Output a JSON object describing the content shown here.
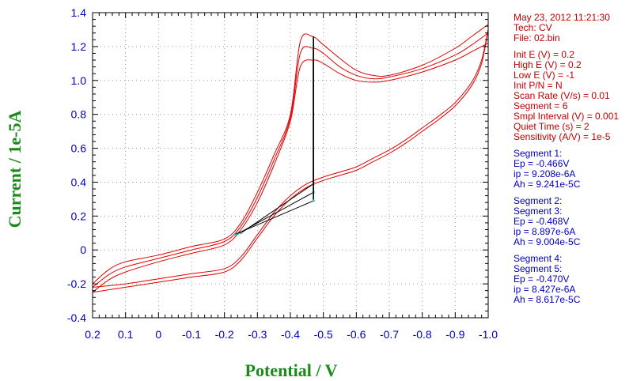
{
  "chart_data": {
    "type": "line",
    "xlabel": "Potential / V",
    "ylabel": "Current / 1e-5A",
    "xlim": [
      0.2,
      -1.0
    ],
    "ylim": [
      -0.4,
      1.4
    ],
    "x_ticks": [
      "0.2",
      "0.1",
      "0",
      "-0.1",
      "-0.2",
      "-0.3",
      "-0.4",
      "-0.5",
      "-0.6",
      "-0.7",
      "-0.8",
      "-0.9",
      "-1.0"
    ],
    "y_ticks": [
      "-0.4",
      "-0.2",
      "0",
      "0.2",
      "0.4",
      "0.6",
      "0.8",
      "1.0",
      "1.2",
      "1.4"
    ],
    "grid": true,
    "colors": {
      "curve": "#e00000",
      "baseline": "#000000",
      "axis_text": "#0000c0",
      "label": "#1a8a1a"
    },
    "series": [
      {
        "x": [
          0.2,
          0.15,
          0.1,
          0.0,
          -0.1,
          -0.2,
          -0.25,
          -0.3,
          -0.35,
          -0.4,
          -0.43,
          -0.47,
          -0.5,
          -0.55,
          -0.6,
          -0.65,
          -0.7,
          -0.8,
          -0.9,
          -0.95,
          -1.0
        ],
        "y": [
          -0.25,
          -0.175,
          -0.13,
          -0.07,
          -0.02,
          0.03,
          0.12,
          0.28,
          0.5,
          0.76,
          1.08,
          1.12,
          1.1,
          1.04,
          1.0,
          0.99,
          1.0,
          1.05,
          1.12,
          1.17,
          1.22
        ]
      },
      {
        "x": [
          0.2,
          0.15,
          0.1,
          0.0,
          -0.1,
          -0.2,
          -0.25,
          -0.3,
          -0.35,
          -0.4,
          -0.43,
          -0.468,
          -0.5,
          -0.55,
          -0.6,
          -0.65,
          -0.7,
          -0.8,
          -0.9,
          -0.95,
          -1.0
        ],
        "y": [
          -0.22,
          -0.145,
          -0.1,
          -0.05,
          0.0,
          0.05,
          0.14,
          0.31,
          0.53,
          0.78,
          1.16,
          1.19,
          1.16,
          1.08,
          1.03,
          1.01,
          1.02,
          1.07,
          1.15,
          1.21,
          1.28
        ]
      },
      {
        "x": [
          0.2,
          0.15,
          0.1,
          0.0,
          -0.1,
          -0.2,
          -0.25,
          -0.3,
          -0.35,
          -0.4,
          -0.43,
          -0.466,
          -0.5,
          -0.55,
          -0.6,
          -0.65,
          -0.7,
          -0.8,
          -0.9,
          -0.95,
          -1.0
        ],
        "y": [
          -0.2,
          -0.115,
          -0.07,
          -0.03,
          0.02,
          0.065,
          0.16,
          0.34,
          0.56,
          0.8,
          1.23,
          1.26,
          1.21,
          1.13,
          1.06,
          1.03,
          1.03,
          1.09,
          1.19,
          1.26,
          1.33
        ]
      },
      {
        "x": [
          -1.0,
          -0.98,
          -0.95,
          -0.9,
          -0.85,
          -0.8,
          -0.75,
          -0.7,
          -0.65,
          -0.6,
          -0.55,
          -0.5,
          -0.45,
          -0.4,
          -0.35,
          -0.3,
          -0.25,
          -0.2,
          -0.1,
          0.0,
          0.1,
          0.2
        ],
        "y": [
          1.3,
          1.1,
          0.97,
          0.85,
          0.77,
          0.7,
          0.63,
          0.57,
          0.52,
          0.47,
          0.44,
          0.41,
          0.37,
          0.3,
          0.2,
          0.07,
          -0.06,
          -0.13,
          -0.16,
          -0.19,
          -0.22,
          -0.25
        ]
      },
      {
        "x": [
          -1.0,
          -0.98,
          -0.95,
          -0.9,
          -0.85,
          -0.8,
          -0.75,
          -0.7,
          -0.65,
          -0.6,
          -0.55,
          -0.5,
          -0.45,
          -0.4,
          -0.35,
          -0.3,
          -0.25,
          -0.2,
          -0.1,
          0.0,
          0.1,
          0.2
        ],
        "y": [
          1.3,
          1.12,
          0.99,
          0.87,
          0.79,
          0.72,
          0.65,
          0.59,
          0.54,
          0.49,
          0.46,
          0.43,
          0.39,
          0.32,
          0.22,
          0.09,
          -0.04,
          -0.11,
          -0.14,
          -0.17,
          -0.2,
          -0.22
        ]
      }
    ],
    "baselines": [
      {
        "x": [
          -0.25,
          -0.47
        ],
        "y": [
          0.1,
          0.39
        ],
        "peak_y": 1.26
      },
      {
        "x": [
          -0.24,
          -0.47
        ],
        "y": [
          0.095,
          0.34
        ],
        "peak_y": 1.19
      },
      {
        "x": [
          -0.23,
          -0.47
        ],
        "y": [
          0.09,
          0.29
        ],
        "peak_y": 1.12
      }
    ]
  },
  "info": {
    "header": [
      "May 23, 2012   11:21:30",
      "Tech: CV",
      "File: 02.bin"
    ],
    "params": [
      "Init E (V) = 0.2",
      "High E (V) = 0.2",
      "Low E (V) = -1",
      "Init P/N = N",
      "Scan Rate (V/s) = 0.01",
      "Segment = 6",
      "Smpl Interval (V) = 0.001",
      "Quiet Time (s) = 2",
      "Sensitivity (A/V) = 1e-5"
    ],
    "seg1": [
      "Segment 1:",
      "Ep = -0.466V",
      "ip = 9.208e-6A",
      "Ah = 9.241e-5C"
    ],
    "seg2": [
      "Segment 2:",
      "Segment 3:",
      "Ep = -0.468V",
      "ip = 8.897e-6A",
      "Ah = 9.004e-5C"
    ],
    "seg3": [
      "Segment 4:",
      "Segment 5:",
      "Ep = -0.470V",
      "ip = 8.427e-6A",
      "Ah = 8.617e-5C"
    ]
  }
}
